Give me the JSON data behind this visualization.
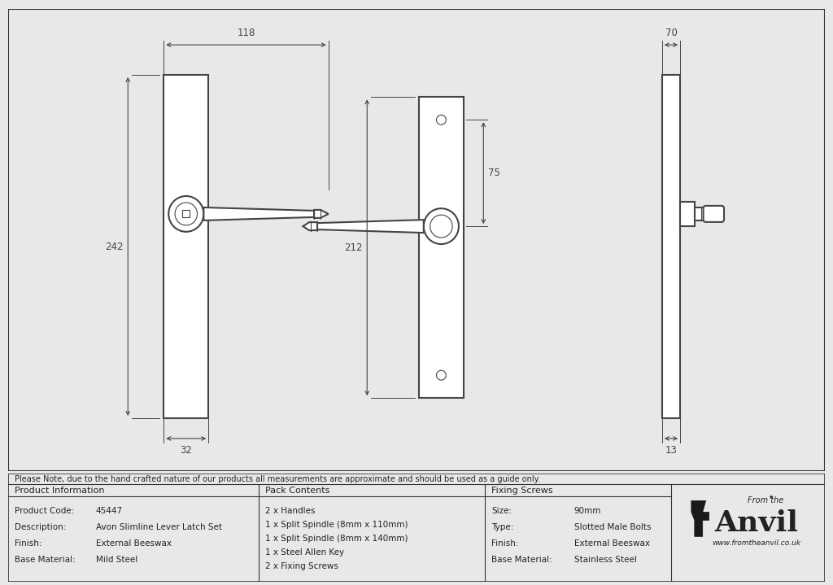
{
  "bg_color": "#e8e8e8",
  "drawing_bg": "#ffffff",
  "border_color": "#333333",
  "line_color": "#444444",
  "dim_color": "#444444",
  "text_color": "#222222",
  "note_text": "Please Note, due to the hand crafted nature of our products all measurements are approximate and should be used as a guide only.",
  "product_info": {
    "header": "Product Information",
    "rows": [
      [
        "Product Code:",
        "45447"
      ],
      [
        "Description:",
        "Avon Slimline Lever Latch Set"
      ],
      [
        "Finish:",
        "External Beeswax"
      ],
      [
        "Base Material:",
        "Mild Steel"
      ]
    ]
  },
  "pack_contents": {
    "header": "Pack Contents",
    "rows": [
      "2 x Handles",
      "1 x Split Spindle (8mm x 110mm)",
      "1 x Split Spindle (8mm x 140mm)",
      "1 x Steel Allen Key",
      "2 x Fixing Screws"
    ]
  },
  "fixing_screws": {
    "header": "Fixing Screws",
    "rows": [
      [
        "Size:",
        "90mm"
      ],
      [
        "Type:",
        "Slotted Male Bolts"
      ],
      [
        "Finish:",
        "External Beeswax"
      ],
      [
        "Base Material:",
        "Stainless Steel"
      ]
    ]
  },
  "dim_118": "118",
  "dim_242": "242",
  "dim_32": "32",
  "dim_212": "212",
  "dim_75": "75",
  "dim_70": "70",
  "dim_13": "13"
}
